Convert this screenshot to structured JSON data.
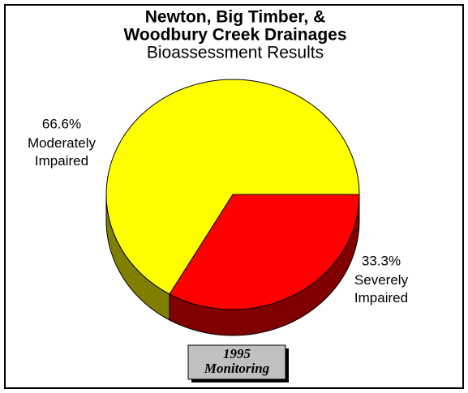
{
  "chart_data": {
    "type": "pie3d",
    "title": [
      "Newton, Big Timber, &",
      "Woodbury Creek Drainages"
    ],
    "subtitle": "Bioassessment Results",
    "categories": [
      "Severely Impaired",
      "Moderately Impaired"
    ],
    "values": [
      33.3,
      66.6
    ],
    "value_labels": [
      "33.3%",
      "66.6%"
    ],
    "colors": [
      "#ff0000",
      "#ffff00"
    ],
    "side_colors": [
      "#800000",
      "#808000"
    ],
    "annotation": "1995 Monitoring"
  }
}
